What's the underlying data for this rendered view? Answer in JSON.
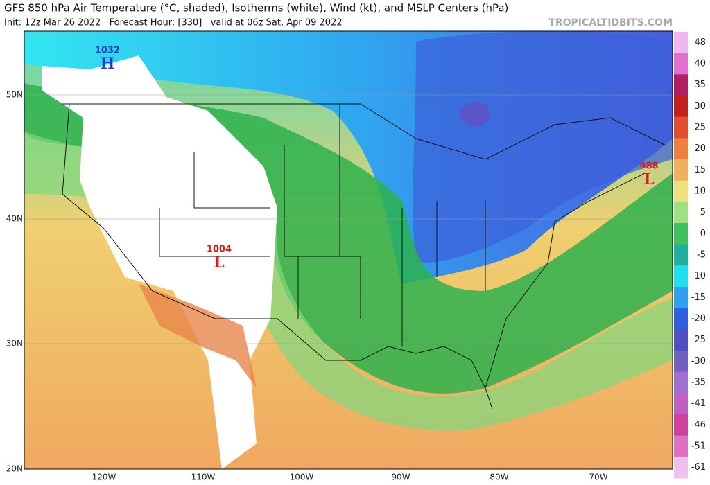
{
  "header": {
    "title": "GFS 850 hPa Air Temperature (°C, shaded), Isotherms (white), Wind (kt), and MSLP Centers (hPa)",
    "subtitle": "Init: 12z Mar 26 2022   Forecast Hour: [330]   valid at 06z Sat, Apr 09 2022",
    "site": "TROPICALTIDBITS.COM"
  },
  "latitude_labels": [
    "50N",
    "40N",
    "30N",
    "20N"
  ],
  "longitude_labels": [
    "120W",
    "110W",
    "100W",
    "90W",
    "80W",
    "70W"
  ],
  "colorbar": {
    "labels": [
      48,
      40,
      35,
      30,
      25,
      20,
      15,
      10,
      5,
      0,
      -5,
      -10,
      -15,
      -20,
      -25,
      -30,
      -35,
      -41,
      -46,
      -51,
      -61
    ]
  },
  "pressure_centers": [
    {
      "value": "1032",
      "letter": "H"
    },
    {
      "value": "1004",
      "letter": "L"
    },
    {
      "value": "988",
      "letter": "L"
    }
  ]
}
